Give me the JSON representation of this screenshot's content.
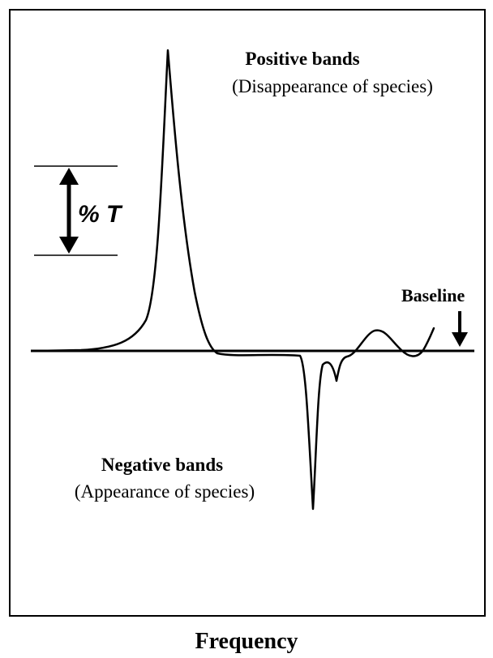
{
  "positive": {
    "title": "Positive bands",
    "subtitle": "(Disappearance of species)"
  },
  "negative": {
    "title": "Negative bands",
    "subtitle": "(Appearance of species)"
  },
  "scale_label": "% T",
  "baseline_label": "Baseline",
  "x_axis_label": "Frequency"
}
